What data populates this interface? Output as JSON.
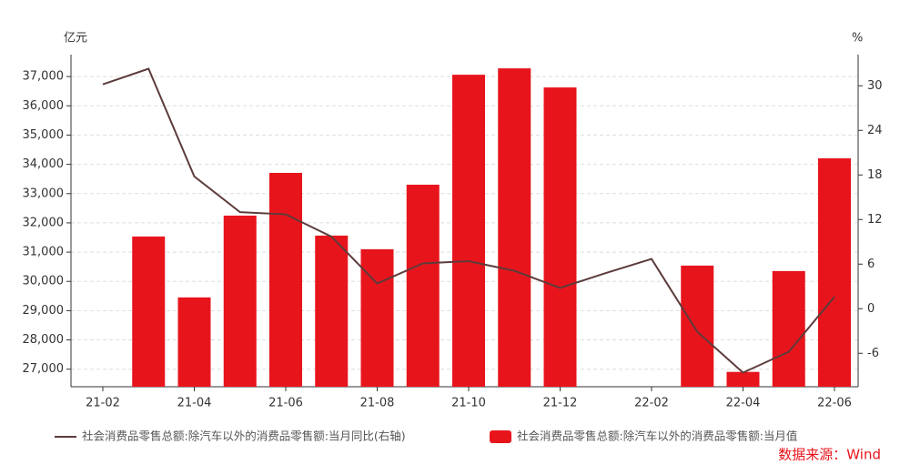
{
  "chart_data": {
    "type": "bar_line",
    "y_unit": "亿元",
    "y2_unit": "%",
    "categories": [
      "21-02",
      null,
      "21-04",
      null,
      "21-06",
      null,
      "21-08",
      null,
      "21-10",
      null,
      "21-12",
      null,
      "22-02",
      null,
      "22-04",
      null,
      "22-06"
    ],
    "series": [
      {
        "name": "社会消费品零售总额:除汽车以外的消费品零售额:当月同比(右轴)",
        "color": "#5e3b3b",
        "type": "line",
        "axis": "y2",
        "values": [
          30.2,
          32.3,
          17.8,
          13.0,
          12.7,
          9.7,
          3.4,
          6.1,
          6.4,
          5.1,
          2.8,
          4.8,
          6.7,
          -3.1,
          -8.6,
          -5.8,
          1.6
        ]
      },
      {
        "name": "社会消费品零售总额:除汽车以外的消费品零售额:当月值",
        "color": "#e8141c",
        "type": "bar",
        "values": [
          null,
          31534,
          29453,
          32248,
          33708,
          31565,
          31099,
          33304,
          37062,
          37280,
          36627,
          null,
          null,
          30540,
          26907,
          30354,
          34205
        ]
      }
    ],
    "ylim": [
      26400,
      37750
    ],
    "yticks": [
      {
        "value": 27000,
        "label": "27,000"
      },
      {
        "value": 28000,
        "label": "28,000"
      },
      {
        "value": 29000,
        "label": "29,000"
      },
      {
        "value": 30000,
        "label": "30,000"
      },
      {
        "value": 31000,
        "label": "31,000"
      },
      {
        "value": 32000,
        "label": "32,000"
      },
      {
        "value": 33000,
        "label": "33,000"
      },
      {
        "value": 34000,
        "label": "34,000"
      },
      {
        "value": 35000,
        "label": "35,000"
      },
      {
        "value": 36000,
        "label": "36,000"
      },
      {
        "value": 37000,
        "label": "37,000"
      }
    ],
    "y2lim": [
      -10.5,
      34.2
    ],
    "y2ticks": [
      -6,
      0,
      6,
      12,
      18,
      24,
      30
    ],
    "grid": true,
    "source": "数据来源：Wind"
  }
}
